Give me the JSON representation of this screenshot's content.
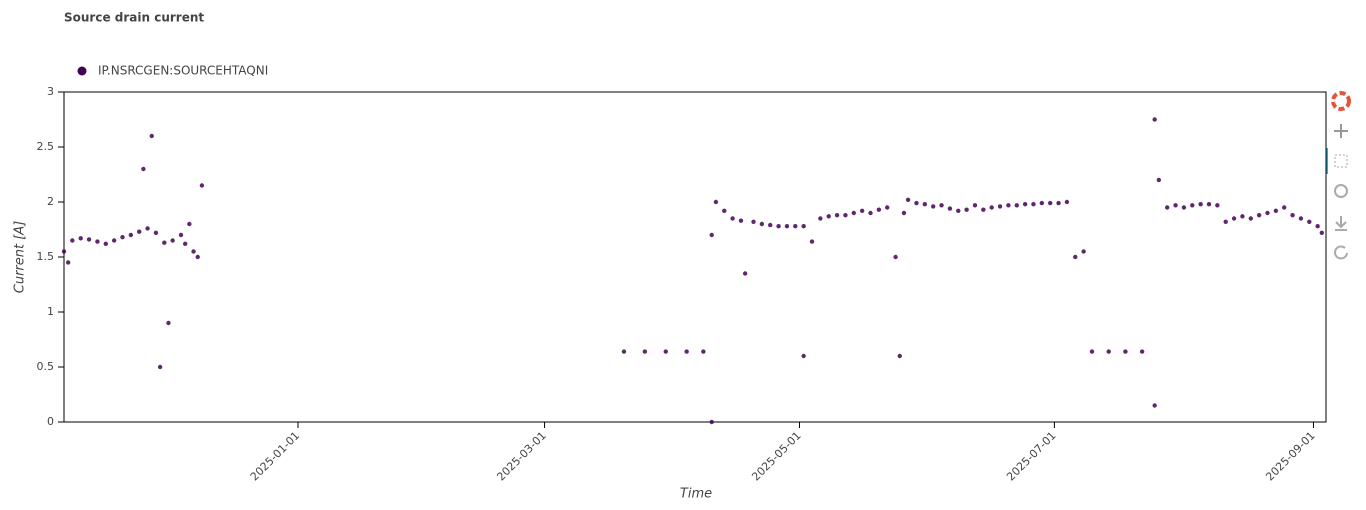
{
  "chart_data": {
    "type": "scatter",
    "title": "Source drain current",
    "x_label": "Time",
    "y_label": "Current [A]",
    "xlim": [
      "2024-11-06",
      "2025-09-04"
    ],
    "xticks": [
      "2025-01-01",
      "2025-03-01",
      "2025-05-01",
      "2025-07-01",
      "2025-09-01"
    ],
    "ylim": [
      0,
      3
    ],
    "yticks": [
      0,
      0.5,
      1,
      1.5,
      2,
      2.5,
      3
    ],
    "legend": "top-left",
    "series": [
      {
        "name": "IP.NSRCGEN:SOURCEHTAQNI",
        "color": "#440154",
        "x": [
          "2024-11-06",
          "2024-11-07",
          "2024-11-08",
          "2024-11-10",
          "2024-11-12",
          "2024-11-14",
          "2024-11-16",
          "2024-11-18",
          "2024-11-20",
          "2024-11-22",
          "2024-11-24",
          "2024-11-25",
          "2024-11-26",
          "2024-11-27",
          "2024-11-28",
          "2024-11-29",
          "2024-11-30",
          "2024-12-01",
          "2024-12-02",
          "2024-12-04",
          "2024-12-05",
          "2024-12-06",
          "2024-12-07",
          "2024-12-08",
          "2024-12-09",
          "2025-03-20",
          "2025-03-25",
          "2025-03-30",
          "2025-04-04",
          "2025-04-08",
          "2025-04-10",
          "2025-04-10",
          "2025-04-11",
          "2025-04-13",
          "2025-04-15",
          "2025-04-17",
          "2025-04-18",
          "2025-04-20",
          "2025-04-22",
          "2025-04-24",
          "2025-04-26",
          "2025-04-28",
          "2025-04-30",
          "2025-05-02",
          "2025-05-02",
          "2025-05-04",
          "2025-05-06",
          "2025-05-08",
          "2025-05-10",
          "2025-05-12",
          "2025-05-14",
          "2025-05-16",
          "2025-05-18",
          "2025-05-20",
          "2025-05-22",
          "2025-05-24",
          "2025-05-25",
          "2025-05-26",
          "2025-05-27",
          "2025-05-29",
          "2025-05-31",
          "2025-06-02",
          "2025-06-04",
          "2025-06-06",
          "2025-06-08",
          "2025-06-10",
          "2025-06-12",
          "2025-06-14",
          "2025-06-16",
          "2025-06-18",
          "2025-06-20",
          "2025-06-22",
          "2025-06-24",
          "2025-06-26",
          "2025-06-28",
          "2025-06-30",
          "2025-07-02",
          "2025-07-04",
          "2025-07-06",
          "2025-07-08",
          "2025-07-10",
          "2025-07-14",
          "2025-07-18",
          "2025-07-22",
          "2025-07-25",
          "2025-07-25",
          "2025-07-26",
          "2025-07-28",
          "2025-07-30",
          "2025-08-01",
          "2025-08-03",
          "2025-08-05",
          "2025-08-07",
          "2025-08-09",
          "2025-08-11",
          "2025-08-13",
          "2025-08-15",
          "2025-08-17",
          "2025-08-19",
          "2025-08-21",
          "2025-08-23",
          "2025-08-25",
          "2025-08-27",
          "2025-08-29",
          "2025-08-31",
          "2025-09-02",
          "2025-09-03"
        ],
        "values": [
          1.55,
          1.45,
          1.65,
          1.67,
          1.66,
          1.64,
          1.62,
          1.65,
          1.68,
          1.7,
          1.73,
          2.3,
          1.76,
          2.6,
          1.72,
          0.5,
          1.63,
          0.9,
          1.65,
          1.7,
          1.62,
          1.8,
          1.55,
          1.5,
          2.15,
          0.64,
          0.64,
          0.64,
          0.64,
          0.64,
          0,
          1.7,
          2,
          1.92,
          1.85,
          1.83,
          1.35,
          1.82,
          1.8,
          1.79,
          1.78,
          1.78,
          1.78,
          1.78,
          0.6,
          1.64,
          1.85,
          1.87,
          1.88,
          1.88,
          1.9,
          1.92,
          1.9,
          1.93,
          1.95,
          1.5,
          0.6,
          1.9,
          2.02,
          1.99,
          1.98,
          1.96,
          1.97,
          1.94,
          1.92,
          1.93,
          1.97,
          1.93,
          1.95,
          1.96,
          1.97,
          1.97,
          1.98,
          1.98,
          1.99,
          1.99,
          1.99,
          2,
          1.5,
          1.55,
          0.64,
          0.64,
          0.64,
          0.64,
          2.75,
          0.15,
          2.2,
          1.95,
          1.97,
          1.95,
          1.97,
          1.98,
          1.98,
          1.97,
          1.82,
          1.85,
          1.87,
          1.85,
          1.88,
          1.9,
          1.92,
          1.95,
          1.88,
          1.85,
          1.82,
          1.78,
          1.72
        ]
      }
    ]
  }
}
